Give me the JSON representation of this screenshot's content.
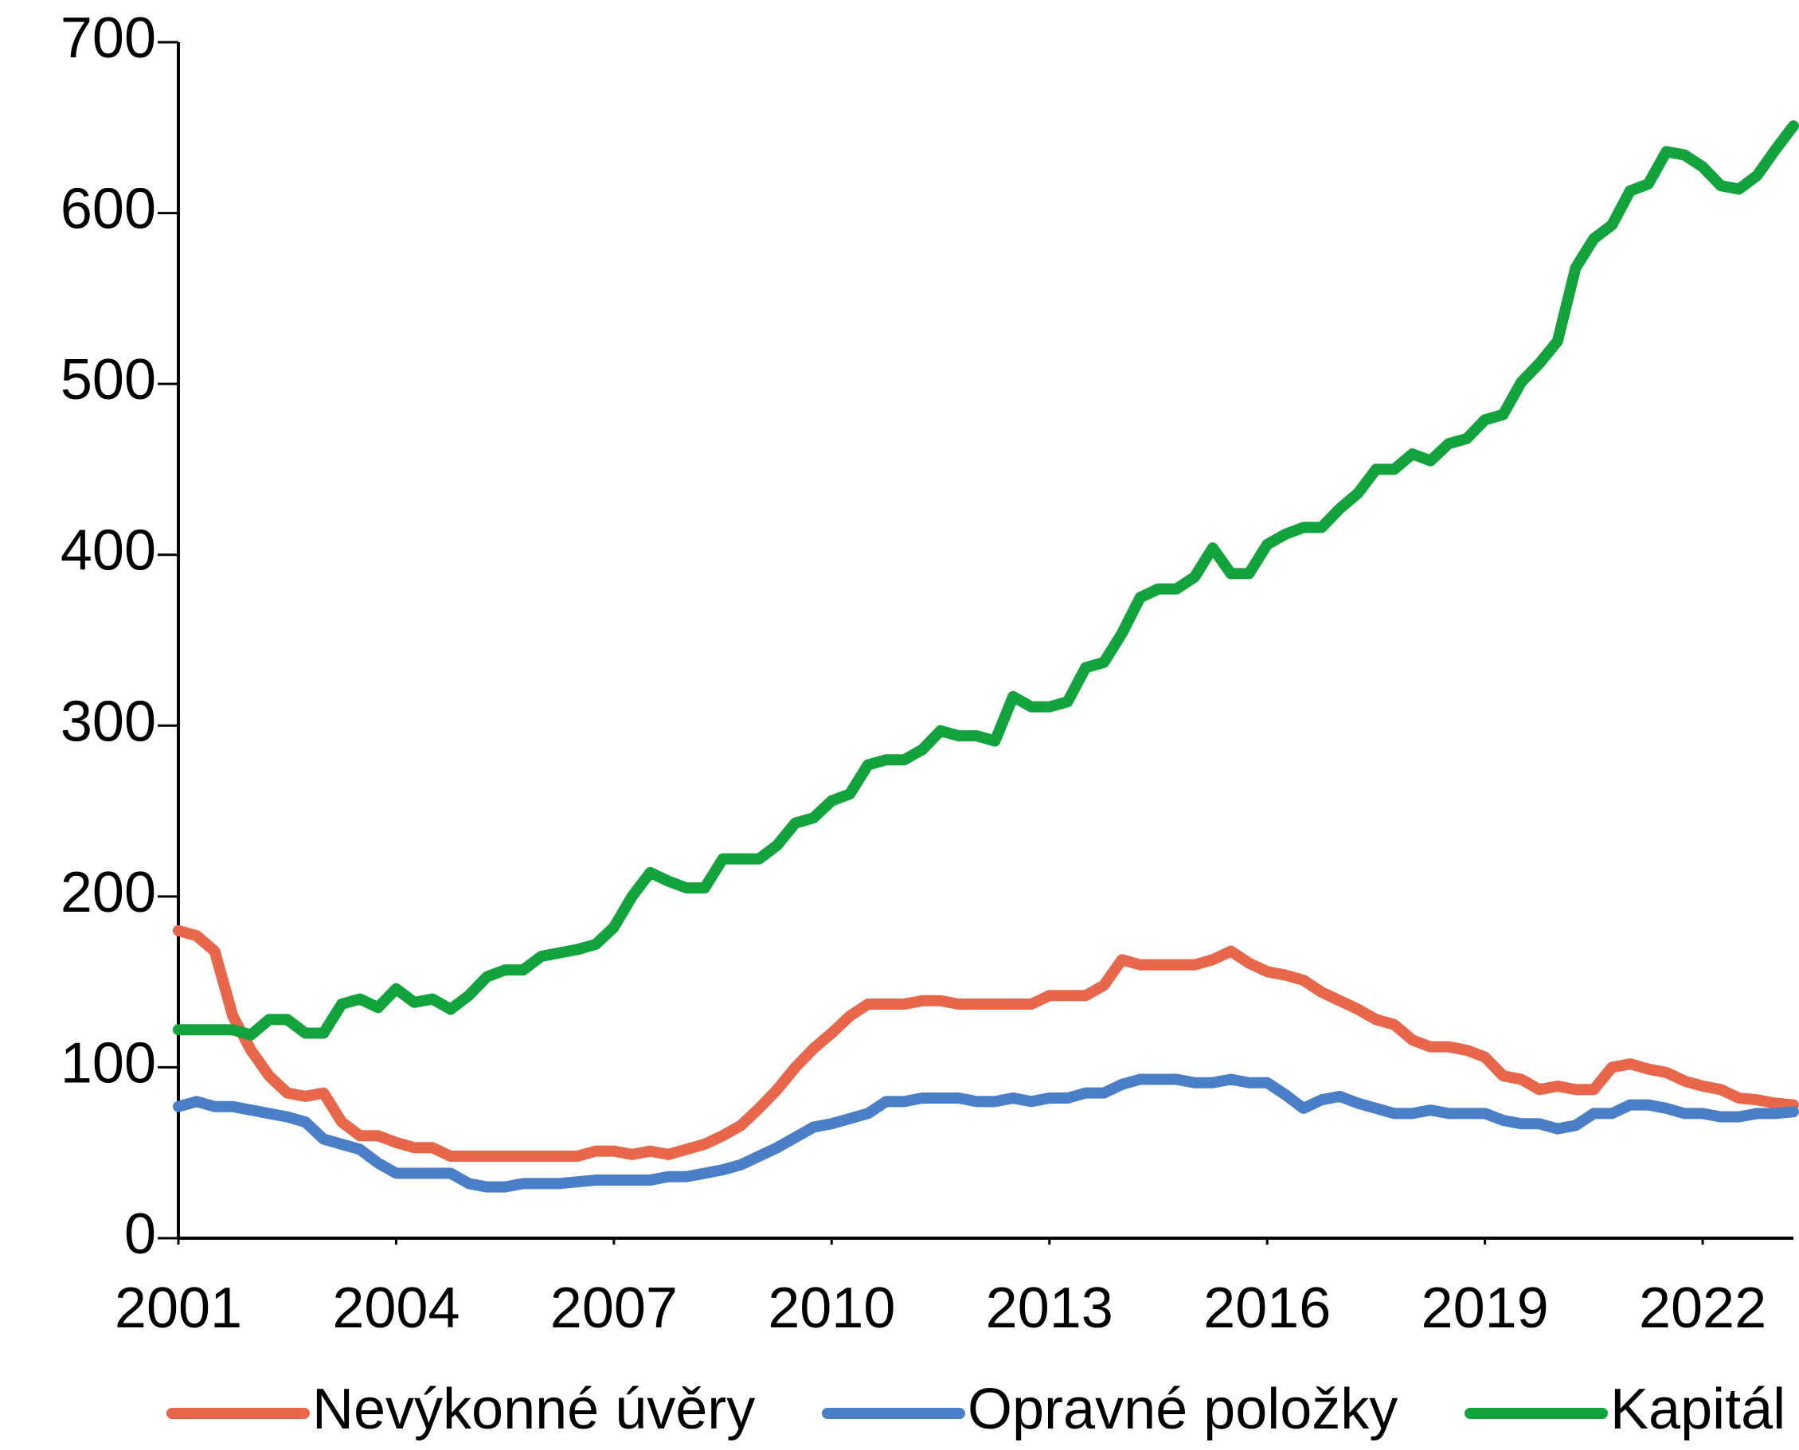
{
  "chart_data": {
    "type": "line",
    "x": [
      2001,
      2001.25,
      2001.5,
      2001.75,
      2002,
      2002.25,
      2002.5,
      2002.75,
      2003,
      2003.25,
      2003.5,
      2003.75,
      2004,
      2004.25,
      2004.5,
      2004.75,
      2005,
      2005.25,
      2005.5,
      2005.75,
      2006,
      2006.25,
      2006.5,
      2006.75,
      2007,
      2007.25,
      2007.5,
      2007.75,
      2008,
      2008.25,
      2008.5,
      2008.75,
      2009,
      2009.25,
      2009.5,
      2009.75,
      2010,
      2010.25,
      2010.5,
      2010.75,
      2011,
      2011.25,
      2011.5,
      2011.75,
      2012,
      2012.25,
      2012.5,
      2012.75,
      2013,
      2013.25,
      2013.5,
      2013.75,
      2014,
      2014.25,
      2014.5,
      2014.75,
      2015,
      2015.25,
      2015.5,
      2015.75,
      2016,
      2016.25,
      2016.5,
      2016.75,
      2017,
      2017.25,
      2017.5,
      2017.75,
      2018,
      2018.25,
      2018.5,
      2018.75,
      2019,
      2019.25,
      2019.5,
      2019.75,
      2020,
      2020.25,
      2020.5,
      2020.75,
      2021,
      2021.25,
      2021.5,
      2021.75,
      2022,
      2022.25,
      2022.5,
      2022.75,
      2023,
      2023.25
    ],
    "series": [
      {
        "name": "Nevýkonné úvěry",
        "color": "#e8664a",
        "values": [
          180,
          177,
          168,
          130,
          110,
          95,
          85,
          83,
          85,
          68,
          60,
          60,
          56,
          53,
          53,
          48,
          48,
          48,
          48,
          48,
          48,
          48,
          48,
          51,
          51,
          49,
          51,
          49,
          52,
          55,
          60,
          66,
          76,
          87,
          100,
          111,
          120,
          130,
          137,
          137,
          137,
          139,
          139,
          137,
          137,
          137,
          137,
          137,
          142,
          142,
          142,
          148,
          163,
          160,
          160,
          160,
          160,
          163,
          168,
          161,
          156,
          154,
          151,
          144,
          139,
          134,
          128,
          125,
          116,
          112,
          112,
          110,
          106,
          95,
          93,
          87,
          89,
          87,
          87,
          100,
          102,
          99,
          97,
          92,
          89,
          87,
          82,
          81,
          79,
          78
        ]
      },
      {
        "name": "Opravné položky",
        "color": "#4a7fc8",
        "values": [
          77,
          80,
          77,
          77,
          75,
          73,
          71,
          68,
          58,
          55,
          52,
          44,
          38,
          38,
          38,
          38,
          32,
          30,
          30,
          32,
          32,
          32,
          33,
          34,
          34,
          34,
          34,
          36,
          36,
          38,
          40,
          43,
          48,
          53,
          59,
          65,
          67,
          70,
          73,
          80,
          80,
          82,
          82,
          82,
          80,
          80,
          82,
          80,
          82,
          82,
          85,
          85,
          90,
          93,
          93,
          93,
          91,
          91,
          93,
          91,
          91,
          84,
          76,
          81,
          83,
          79,
          76,
          73,
          73,
          75,
          73,
          73,
          73,
          69,
          67,
          67,
          64,
          66,
          73,
          73,
          78,
          78,
          76,
          73,
          73,
          71,
          71,
          73,
          73,
          74
        ]
      },
      {
        "name": "Kapitál",
        "color": "#12a33c",
        "values": [
          122,
          122,
          122,
          122,
          119,
          128,
          128,
          120,
          120,
          137,
          140,
          135,
          146,
          138,
          140,
          134,
          142,
          153,
          157,
          157,
          165,
          167,
          169,
          172,
          182,
          200,
          214,
          209,
          205,
          205,
          222,
          222,
          222,
          230,
          243,
          246,
          256,
          260,
          277,
          280,
          280,
          286,
          297,
          294,
          294,
          291,
          317,
          311,
          311,
          314,
          334,
          337,
          354,
          375,
          380,
          380,
          387,
          404,
          389,
          389,
          406,
          412,
          416,
          416,
          427,
          436,
          450,
          450,
          459,
          455,
          465,
          468,
          479,
          482,
          501,
          512,
          525,
          568,
          585,
          593,
          613,
          617,
          636,
          634,
          627,
          616,
          614,
          622,
          637,
          651
        ]
      }
    ],
    "xlim": [
      2001,
      2023.25
    ],
    "xticks": [
      2001,
      2004,
      2007,
      2010,
      2013,
      2016,
      2019,
      2022
    ],
    "ylim": [
      0,
      700
    ],
    "yticks": [
      0,
      100,
      200,
      300,
      400,
      500,
      600,
      700
    ],
    "legend": "bottom"
  }
}
